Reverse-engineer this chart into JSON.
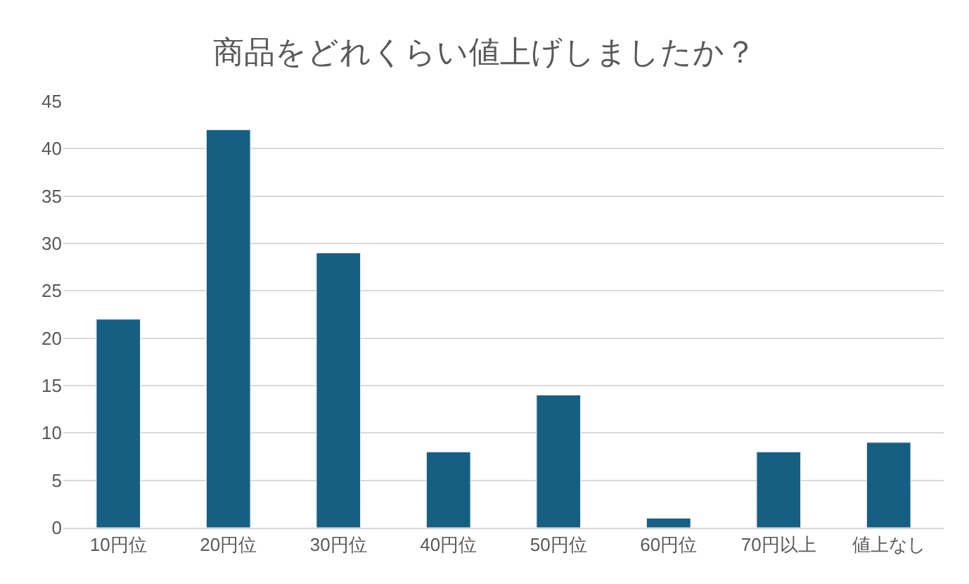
{
  "chart_data": {
    "type": "bar",
    "title": "商品をどれくらい値上げしましたか？",
    "categories": [
      "10円位",
      "20円位",
      "30円位",
      "40円位",
      "50円位",
      "60円位",
      "70円以上",
      "値上なし"
    ],
    "values": [
      22,
      42,
      29,
      8,
      14,
      1,
      8,
      9
    ],
    "color": "#165f82",
    "ylim": [
      0,
      45
    ],
    "yticks": [
      0,
      5,
      10,
      15,
      20,
      25,
      30,
      35,
      40,
      45
    ],
    "grid": "y"
  }
}
